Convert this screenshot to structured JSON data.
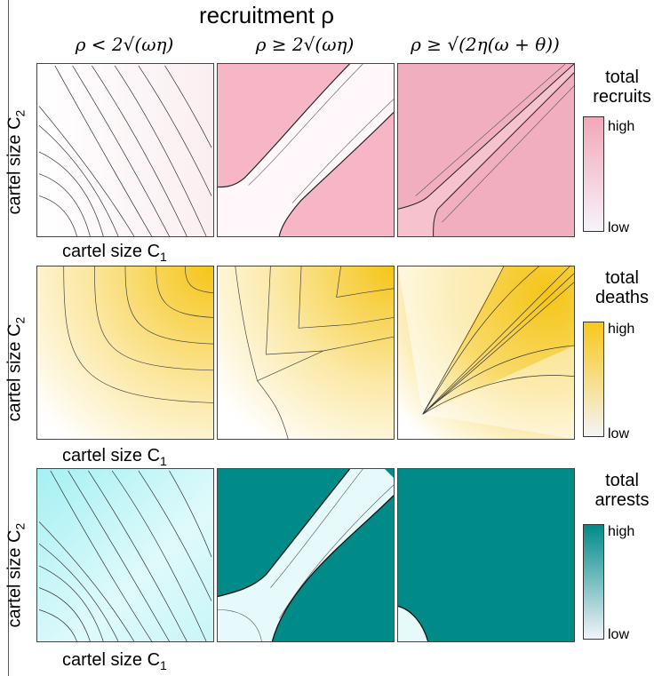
{
  "title": "recruitment ρ",
  "columns": [
    {
      "label": "ρ < 2√(ωη)"
    },
    {
      "label": "ρ ≥ 2√(ωη)"
    },
    {
      "label": "ρ ≥ √(2η(ω + θ))"
    }
  ],
  "axes": {
    "ylabel": "cartel size C",
    "ylabel_sub": "2",
    "xlabel": "cartel size C",
    "xlabel_sub": "1"
  },
  "rows": [
    {
      "legend_title_1": "total",
      "legend_title_2": "recruits",
      "high": "high",
      "low": "low",
      "color": "#f2a7b8"
    },
    {
      "legend_title_1": "total",
      "legend_title_2": "deaths",
      "high": "high",
      "low": "low",
      "color": "#f7cf25"
    },
    {
      "legend_title_1": "total",
      "legend_title_2": "arrests",
      "high": "high",
      "low": "low",
      "color": "#008a88"
    }
  ]
}
